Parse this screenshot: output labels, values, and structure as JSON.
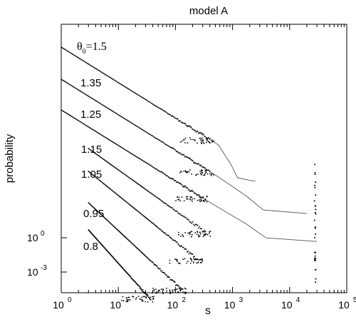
{
  "chart_data": {
    "type": "scatter",
    "title": "model A",
    "xlabel": "s",
    "ylabel": "probability",
    "x_scale": "log",
    "xlim": [
      1,
      100000
    ],
    "x_ticks": [
      {
        "value": 1,
        "label": "10",
        "exp": "0"
      },
      {
        "value": 10,
        "label": "10",
        "exp": "1"
      },
      {
        "value": 100,
        "label": "10",
        "exp": "2"
      },
      {
        "value": 1000,
        "label": "10",
        "exp": "3"
      },
      {
        "value": 10000,
        "label": "10",
        "exp": "4"
      },
      {
        "value": 100000,
        "label": "10",
        "exp": "5"
      }
    ],
    "y_ticks": [
      {
        "label": "10",
        "exp": "0"
      },
      {
        "label": "10",
        "exp": "-3"
      }
    ],
    "legend_symbol": "θ",
    "legend_subscript": "0",
    "legend_prefix": "=",
    "series": [
      {
        "name": "1.5",
        "slope": -1.0,
        "dots_from": 1.0,
        "dots_to": 400,
        "line_to": 600,
        "tail_end": 2500,
        "has_line": true
      },
      {
        "name": "1.35",
        "slope": -1.0,
        "dots_from": 1.0,
        "dots_to": 400,
        "line_to": 600,
        "tail_end": 20000,
        "has_line": true
      },
      {
        "name": "1.25",
        "slope": -1.0,
        "dots_from": 1.0,
        "dots_to": 300,
        "line_to": 500,
        "tail_end": 30000,
        "has_line": true
      },
      {
        "name": "1.15",
        "slope": -1.15,
        "dots_from": 3.0,
        "dots_to": 350,
        "line_to": 0,
        "tail_end": 0,
        "has_line": false
      },
      {
        "name": "1.05",
        "slope": -1.3,
        "dots_from": 3.0,
        "dots_to": 250,
        "line_to": 0,
        "tail_end": 0,
        "has_line": false
      },
      {
        "name": "0.95",
        "slope": -1.5,
        "dots_from": 3.0,
        "dots_to": 130,
        "line_to": 0,
        "tail_end": 0,
        "has_line": false
      },
      {
        "name": "0.8",
        "slope": -1.8,
        "dots_from": 3.0,
        "dots_to": 35,
        "line_to": 0,
        "tail_end": 0,
        "has_line": false
      }
    ]
  }
}
